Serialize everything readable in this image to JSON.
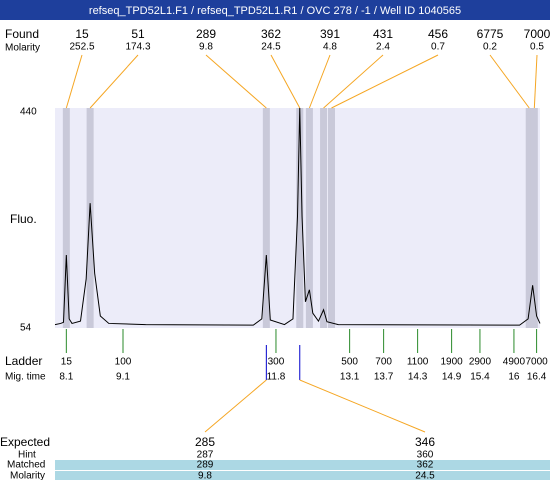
{
  "chart_data": {
    "type": "electropherogram",
    "title": "refseq_TPD52L1.F1 / refseq_TPD52L1.R1 / OVC 278 / -1 / Well ID 1040565",
    "y_label": "Fluo.",
    "ylim": [
      54,
      440
    ],
    "yticks": [
      440,
      54
    ],
    "xlim": [
      7.9,
      16.46
    ],
    "trace": {
      "x": [
        7.9,
        8.0,
        8.05,
        8.1,
        8.15,
        8.2,
        8.35,
        8.45,
        8.52,
        8.6,
        8.7,
        8.85,
        9.5,
        11.4,
        11.55,
        11.63,
        11.7,
        11.95,
        12.1,
        12.18,
        12.22,
        12.26,
        12.32,
        12.39,
        12.45,
        12.55,
        12.64,
        12.7,
        12.9,
        16.1,
        16.25,
        16.33,
        16.4,
        16.46
      ],
      "y": [
        60,
        62,
        64,
        182,
        70,
        62,
        66,
        140,
        273,
        150,
        75,
        62,
        60,
        59,
        70,
        182,
        68,
        60,
        70,
        250,
        440,
        250,
        100,
        121,
        80,
        66,
        86,
        65,
        60,
        59,
        70,
        129,
        75,
        62
      ]
    },
    "found": {
      "label": "Found",
      "sizes": [
        15,
        51,
        289,
        362,
        391,
        431,
        456,
        6775,
        7000
      ],
      "molarity_label": "Molarity",
      "molarity": [
        252.5,
        174.3,
        9.8,
        24.5,
        4.8,
        2.4,
        0.7,
        0.2,
        0.5
      ],
      "mig_time": [
        8.1,
        8.52,
        11.63,
        12.22,
        12.39,
        12.64,
        12.78,
        16.27,
        16.36
      ]
    },
    "ladder": {
      "label": "Ladder",
      "sizes": [
        15,
        100,
        300,
        500,
        700,
        1100,
        1900,
        2900,
        4900,
        7000
      ],
      "mig_time_label": "Mig. time",
      "mig_time": [
        8.1,
        9.1,
        11.8,
        13.1,
        13.7,
        14.3,
        14.9,
        15.4,
        16,
        16.4
      ]
    },
    "expected": {
      "label": "Expected",
      "values": [
        285,
        346
      ],
      "hint_label": "Hint",
      "hint": [
        287,
        360
      ],
      "matched_label": "Matched",
      "matched": [
        289,
        362
      ],
      "molarity_label": "Molarity",
      "molarity": [
        9.8,
        24.5
      ]
    }
  }
}
